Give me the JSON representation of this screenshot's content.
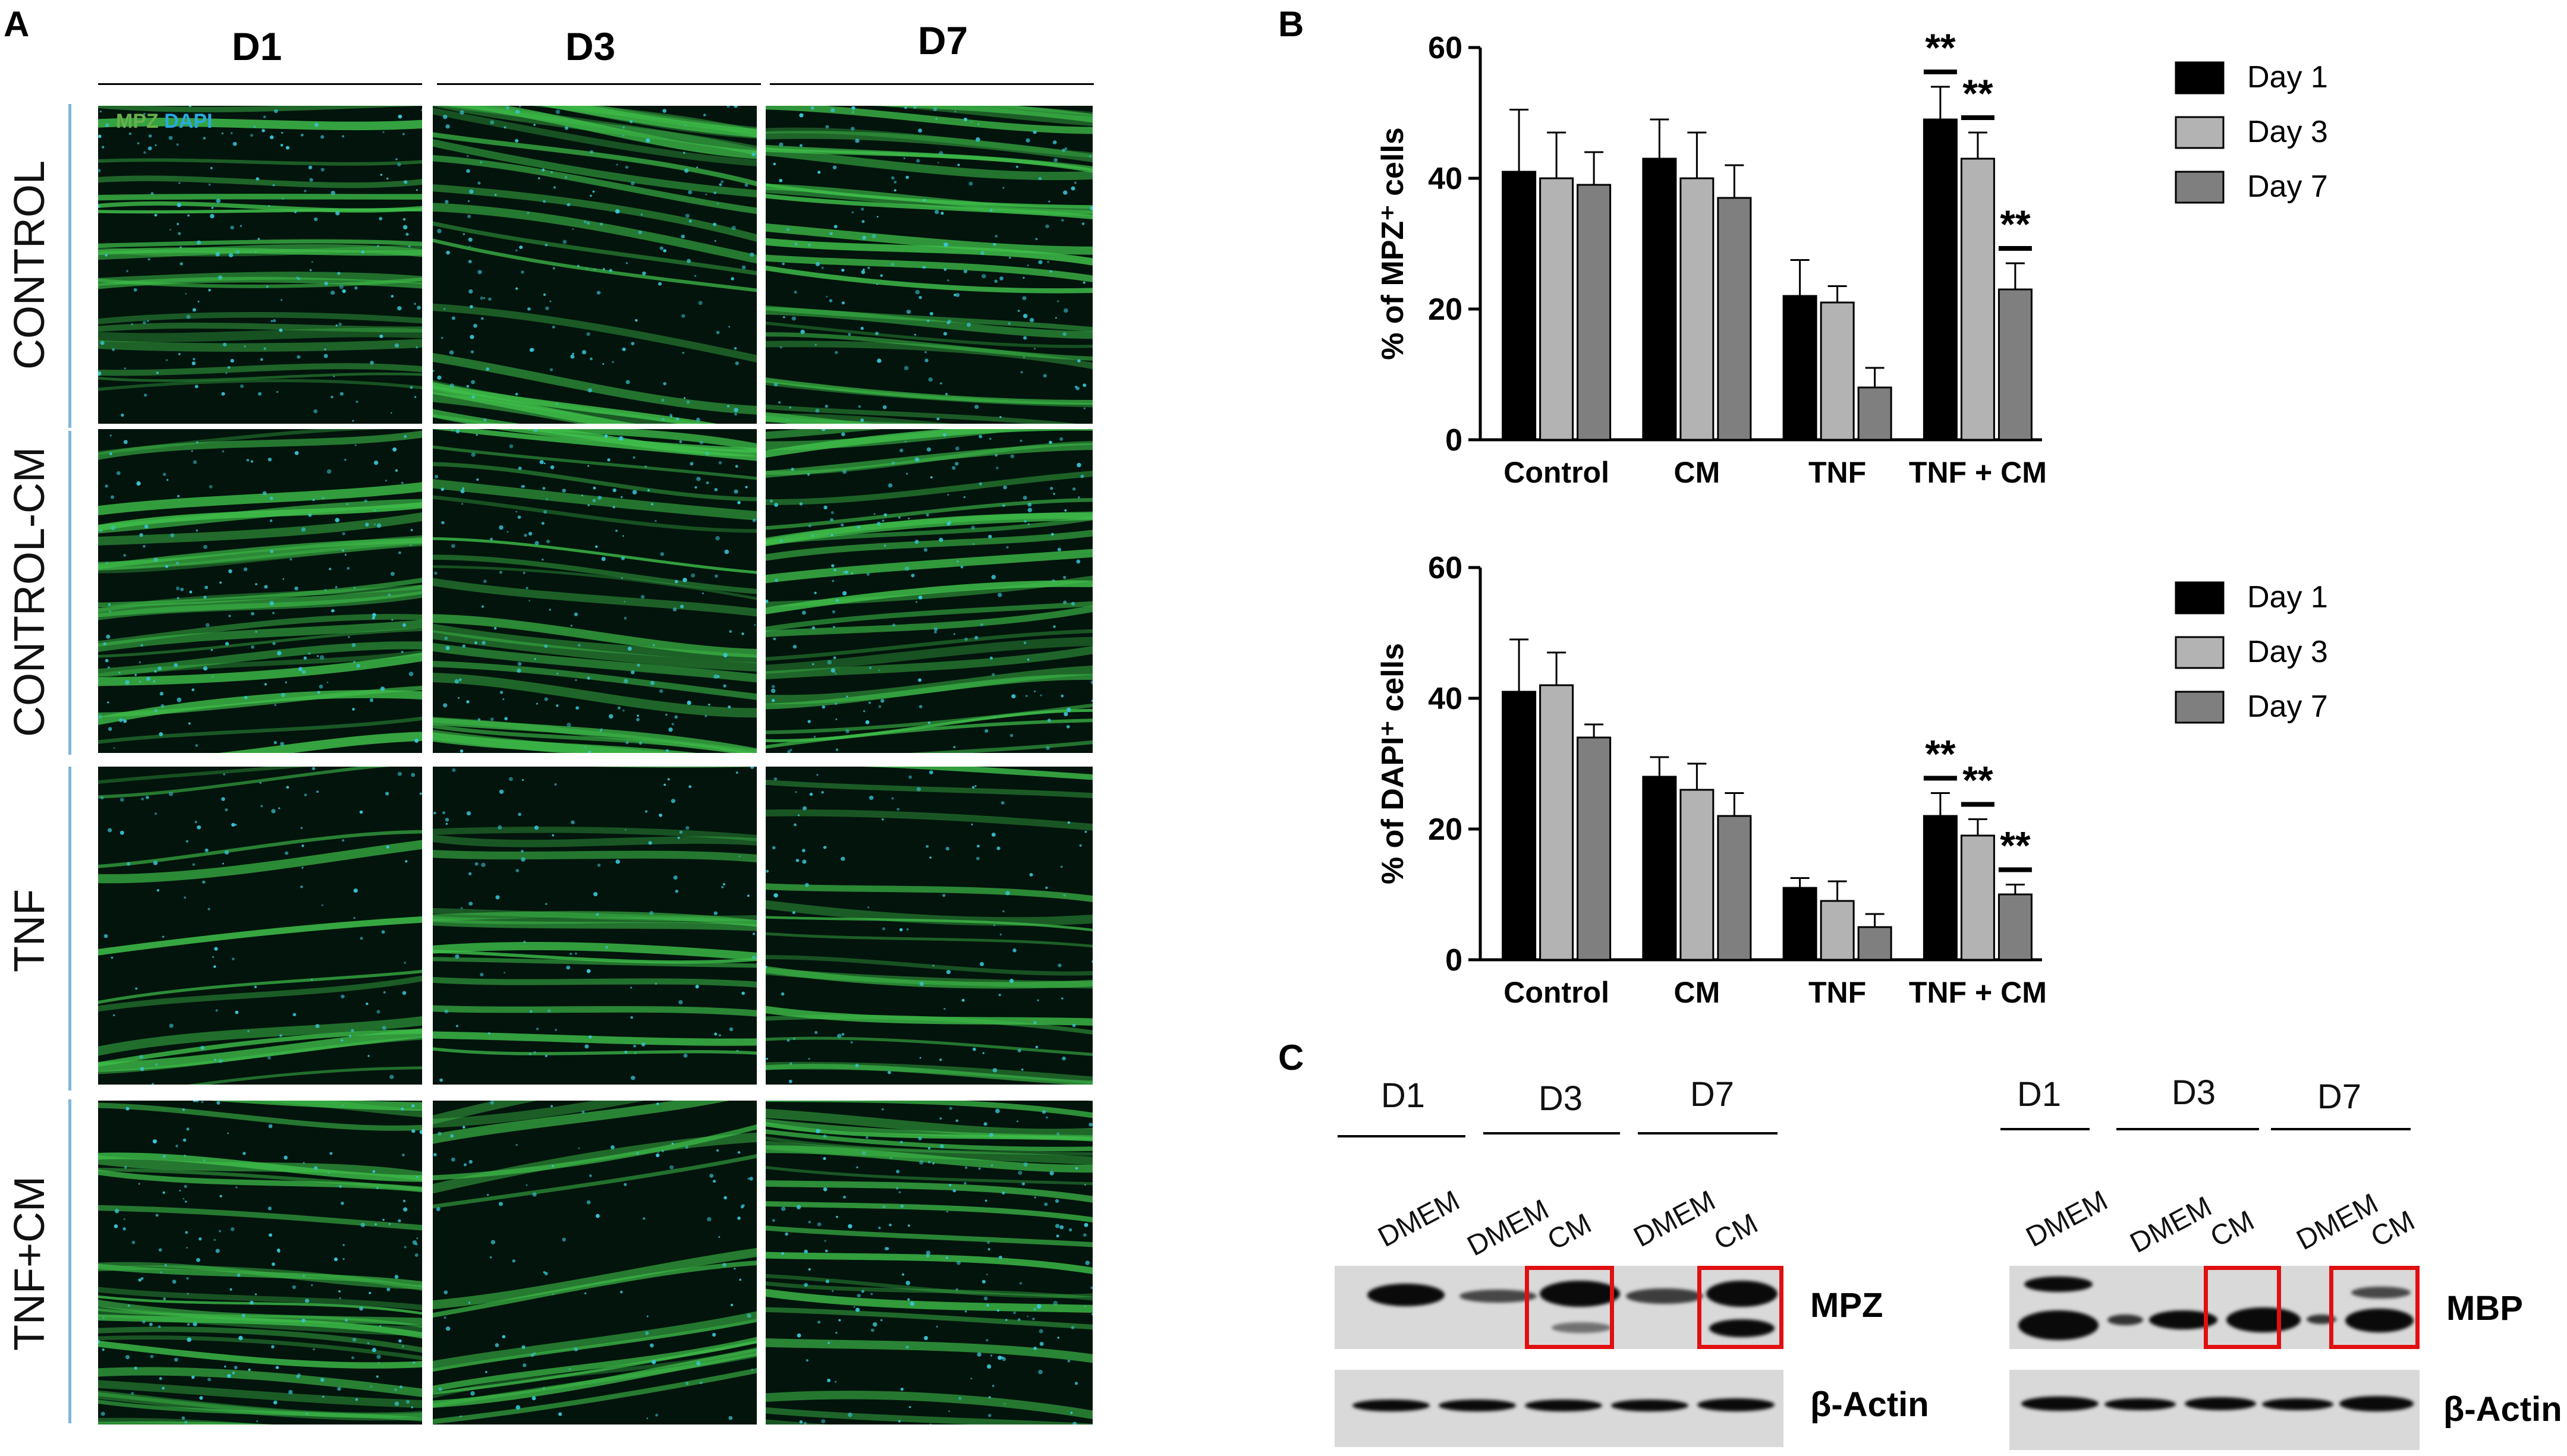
{
  "panels": {
    "A": "A",
    "B": "B",
    "C": "C"
  },
  "panelA": {
    "columns": [
      "D1",
      "D3",
      "D7"
    ],
    "rows": [
      "CONTROL",
      "CONTROL-CM",
      "TNF",
      "TNF+CM"
    ],
    "stain_label_mpz": "MPZ",
    "stain_label_dapi": "DAPI",
    "colors": {
      "mpz": "#3fbf4a",
      "dapi": "#38c6d8",
      "background": "#02140c"
    }
  },
  "chart_data": [
    {
      "type": "bar",
      "ylabel": "% of MPZ⁺ cells",
      "ylim": [
        0,
        60
      ],
      "yticks": [
        "0",
        "20",
        "40",
        "60"
      ],
      "categories": [
        "Control",
        "CM",
        "TNF",
        "TNF + CM"
      ],
      "series": [
        {
          "name": "Day 1",
          "color": "#000000",
          "values": [
            41,
            43,
            22,
            49
          ],
          "errors": [
            9.5,
            6,
            5.5,
            5
          ]
        },
        {
          "name": "Day 3",
          "color": "#b3b3b3",
          "values": [
            40,
            40,
            21,
            43
          ],
          "errors": [
            7,
            7,
            2.5,
            4
          ]
        },
        {
          "name": "Day 7",
          "color": "#7f7f7f",
          "values": [
            39,
            37,
            8,
            23
          ],
          "errors": [
            5,
            5,
            3,
            4
          ]
        }
      ],
      "significance": [
        {
          "category": "TNF + CM",
          "series": "Day 1",
          "label": "**"
        },
        {
          "category": "TNF + CM",
          "series": "Day 3",
          "label": "**"
        },
        {
          "category": "TNF + CM",
          "series": "Day 7",
          "label": "**"
        }
      ],
      "legend_position": "right"
    },
    {
      "type": "bar",
      "ylabel": "% of DAPI⁺ cells",
      "ylim": [
        0,
        60
      ],
      "yticks": [
        "0",
        "20",
        "40",
        "60"
      ],
      "categories": [
        "Control",
        "CM",
        "TNF",
        "TNF + CM"
      ],
      "series": [
        {
          "name": "Day 1",
          "color": "#000000",
          "values": [
            41,
            28,
            11,
            22
          ],
          "errors": [
            8,
            3,
            1.5,
            3.5
          ]
        },
        {
          "name": "Day 3",
          "color": "#b3b3b3",
          "values": [
            42,
            26,
            9,
            19
          ],
          "errors": [
            5,
            4,
            3,
            2.5
          ]
        },
        {
          "name": "Day 7",
          "color": "#7f7f7f",
          "values": [
            34,
            22,
            5,
            10
          ],
          "errors": [
            2,
            3.5,
            2,
            1.5
          ]
        }
      ],
      "significance": [
        {
          "category": "TNF + CM",
          "series": "Day 1",
          "label": "**"
        },
        {
          "category": "TNF + CM",
          "series": "Day 3",
          "label": "**"
        },
        {
          "category": "TNF + CM",
          "series": "Day 7",
          "label": "**"
        }
      ],
      "legend_position": "right"
    }
  ],
  "panelC": {
    "left": {
      "days": [
        "D1",
        "D3",
        "D7"
      ],
      "lanes": [
        "DMEM",
        "DMEM",
        "CM",
        "DMEM",
        "CM"
      ],
      "protein": "MPZ",
      "loading": "β-Actin"
    },
    "right": {
      "days": [
        "D1",
        "D3",
        "D7"
      ],
      "lanes": [
        "DMEM",
        "DMEM",
        "CM",
        "DMEM",
        "CM"
      ],
      "protein": "MBP",
      "loading": "β-Actin"
    },
    "highlight_color": "#e01010"
  }
}
